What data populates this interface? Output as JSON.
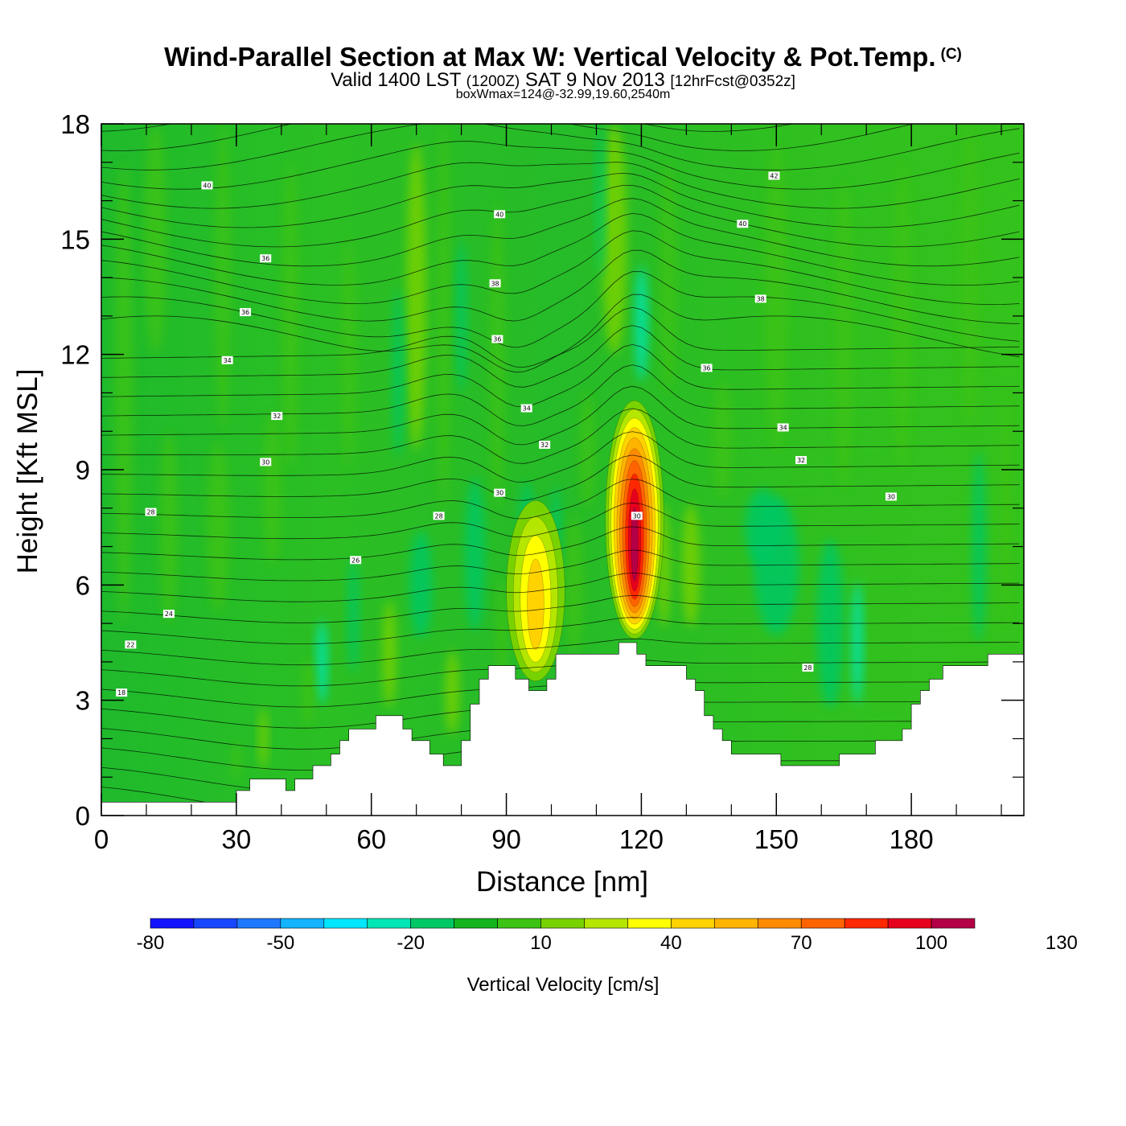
{
  "header": {
    "title": "Wind-Parallel Section at Max W: Vertical Velocity & Pot.Temp.",
    "title_mark": "(C)",
    "valid_prefix": "Valid 1400 LST",
    "valid_z": "(1200Z)",
    "valid_date": "SAT 9 Nov 2013",
    "valid_fcst": "[12hrFcst@0352z]",
    "box_info": "boxWmax=124@-32.99,19.60,2540m"
  },
  "chart_data": {
    "type": "heatmap",
    "title": "Wind-Parallel Section at Max W: Vertical Velocity & Pot.Temp.",
    "xlabel": "Distance [nm]",
    "ylabel": "Height [Kft MSL]",
    "xlim": [
      0,
      205
    ],
    "ylim": [
      0,
      18
    ],
    "xticks": [
      0,
      30,
      60,
      90,
      120,
      150,
      180
    ],
    "yticks": [
      0,
      3,
      6,
      9,
      12,
      15,
      18
    ],
    "terrain": [
      [
        0,
        0.35
      ],
      [
        30,
        0.35
      ],
      [
        30,
        0.65
      ],
      [
        33,
        0.65
      ],
      [
        33,
        0.95
      ],
      [
        41,
        0.95
      ],
      [
        41,
        0.65
      ],
      [
        43,
        0.65
      ],
      [
        43,
        0.95
      ],
      [
        47,
        0.95
      ],
      [
        47,
        1.3
      ],
      [
        51,
        1.3
      ],
      [
        51,
        1.6
      ],
      [
        53,
        1.6
      ],
      [
        53,
        1.95
      ],
      [
        55,
        1.95
      ],
      [
        55,
        2.25
      ],
      [
        61,
        2.25
      ],
      [
        61,
        2.6
      ],
      [
        67,
        2.6
      ],
      [
        67,
        2.25
      ],
      [
        69,
        2.25
      ],
      [
        69,
        1.95
      ],
      [
        73,
        1.95
      ],
      [
        73,
        1.6
      ],
      [
        76,
        1.6
      ],
      [
        76,
        1.3
      ],
      [
        80,
        1.3
      ],
      [
        80,
        1.95
      ],
      [
        82,
        1.95
      ],
      [
        82,
        2.9
      ],
      [
        84,
        2.9
      ],
      [
        84,
        3.55
      ],
      [
        86,
        3.55
      ],
      [
        86,
        3.9
      ],
      [
        92,
        3.9
      ],
      [
        92,
        3.55
      ],
      [
        95,
        3.55
      ],
      [
        95,
        3.25
      ],
      [
        99,
        3.25
      ],
      [
        99,
        3.55
      ],
      [
        101,
        3.55
      ],
      [
        101,
        4.2
      ],
      [
        115,
        4.2
      ],
      [
        115,
        4.5
      ],
      [
        119,
        4.5
      ],
      [
        119,
        4.2
      ],
      [
        121,
        4.2
      ],
      [
        121,
        3.9
      ],
      [
        130,
        3.9
      ],
      [
        130,
        3.55
      ],
      [
        132,
        3.55
      ],
      [
        132,
        3.25
      ],
      [
        134,
        3.25
      ],
      [
        134,
        2.6
      ],
      [
        136,
        2.6
      ],
      [
        136,
        2.25
      ],
      [
        138,
        2.25
      ],
      [
        138,
        1.95
      ],
      [
        140,
        1.95
      ],
      [
        140,
        1.6
      ],
      [
        151,
        1.6
      ],
      [
        151,
        1.3
      ],
      [
        164,
        1.3
      ],
      [
        164,
        1.6
      ],
      [
        172,
        1.6
      ],
      [
        172,
        1.95
      ],
      [
        178,
        1.95
      ],
      [
        178,
        2.25
      ],
      [
        180,
        2.25
      ],
      [
        180,
        2.9
      ],
      [
        182,
        2.9
      ],
      [
        182,
        3.25
      ],
      [
        184,
        3.25
      ],
      [
        184,
        3.55
      ],
      [
        187,
        3.55
      ],
      [
        187,
        3.9
      ],
      [
        197,
        3.9
      ],
      [
        197,
        4.2
      ],
      [
        205,
        4.2
      ]
    ],
    "updrafts": [
      {
        "x": 118.5,
        "y_bottom": 4.6,
        "y_top": 10.8,
        "peak": 124
      },
      {
        "x": 96.5,
        "y_bottom": 3.5,
        "y_top": 8.2,
        "peak": 45
      }
    ],
    "theta_labels": [
      {
        "text": "40",
        "x": 23.5,
        "y": 16.4
      },
      {
        "text": "40",
        "x": 88.5,
        "y": 15.65
      },
      {
        "text": "40",
        "x": 142.5,
        "y": 15.4
      },
      {
        "text": "42",
        "x": 149.5,
        "y": 16.65
      },
      {
        "text": "36",
        "x": 36.5,
        "y": 14.5
      },
      {
        "text": "36",
        "x": 32.0,
        "y": 13.1
      },
      {
        "text": "38",
        "x": 87.5,
        "y": 13.85
      },
      {
        "text": "36",
        "x": 88.0,
        "y": 12.4
      },
      {
        "text": "38",
        "x": 146.5,
        "y": 13.45
      },
      {
        "text": "34",
        "x": 28.0,
        "y": 11.85
      },
      {
        "text": "36",
        "x": 134.5,
        "y": 11.65
      },
      {
        "text": "32",
        "x": 39.0,
        "y": 10.4
      },
      {
        "text": "34",
        "x": 94.5,
        "y": 10.6
      },
      {
        "text": "34",
        "x": 151.5,
        "y": 10.1
      },
      {
        "text": "32",
        "x": 98.5,
        "y": 9.65
      },
      {
        "text": "32",
        "x": 155.5,
        "y": 9.25
      },
      {
        "text": "30",
        "x": 36.5,
        "y": 9.2
      },
      {
        "text": "30",
        "x": 88.5,
        "y": 8.4
      },
      {
        "text": "30",
        "x": 119.0,
        "y": 7.8
      },
      {
        "text": "30",
        "x": 175.5,
        "y": 8.3
      },
      {
        "text": "28",
        "x": 11.0,
        "y": 7.9
      },
      {
        "text": "28",
        "x": 75.0,
        "y": 7.8
      },
      {
        "text": "26",
        "x": 56.5,
        "y": 6.65
      },
      {
        "text": "24",
        "x": 15.0,
        "y": 5.25
      },
      {
        "text": "22",
        "x": 6.5,
        "y": 4.45
      },
      {
        "text": "18",
        "x": 4.5,
        "y": 3.2
      },
      {
        "text": "28",
        "x": 157.0,
        "y": 3.85
      }
    ]
  },
  "colorbar": {
    "label": "Vertical Velocity [cm/s]",
    "colors": [
      "#1414ff",
      "#1846ff",
      "#1e78ff",
      "#14b4ff",
      "#00e6ff",
      "#00e6b4",
      "#00c864",
      "#14b41e",
      "#3cc314",
      "#78d200",
      "#b4e600",
      "#ffff00",
      "#ffd200",
      "#ffb400",
      "#ff8c00",
      "#ff6400",
      "#ff2800",
      "#e6001e",
      "#b40046"
    ],
    "tick_labels": [
      "-80",
      "-50",
      "-20",
      "10",
      "40",
      "70",
      "100",
      "130"
    ]
  }
}
